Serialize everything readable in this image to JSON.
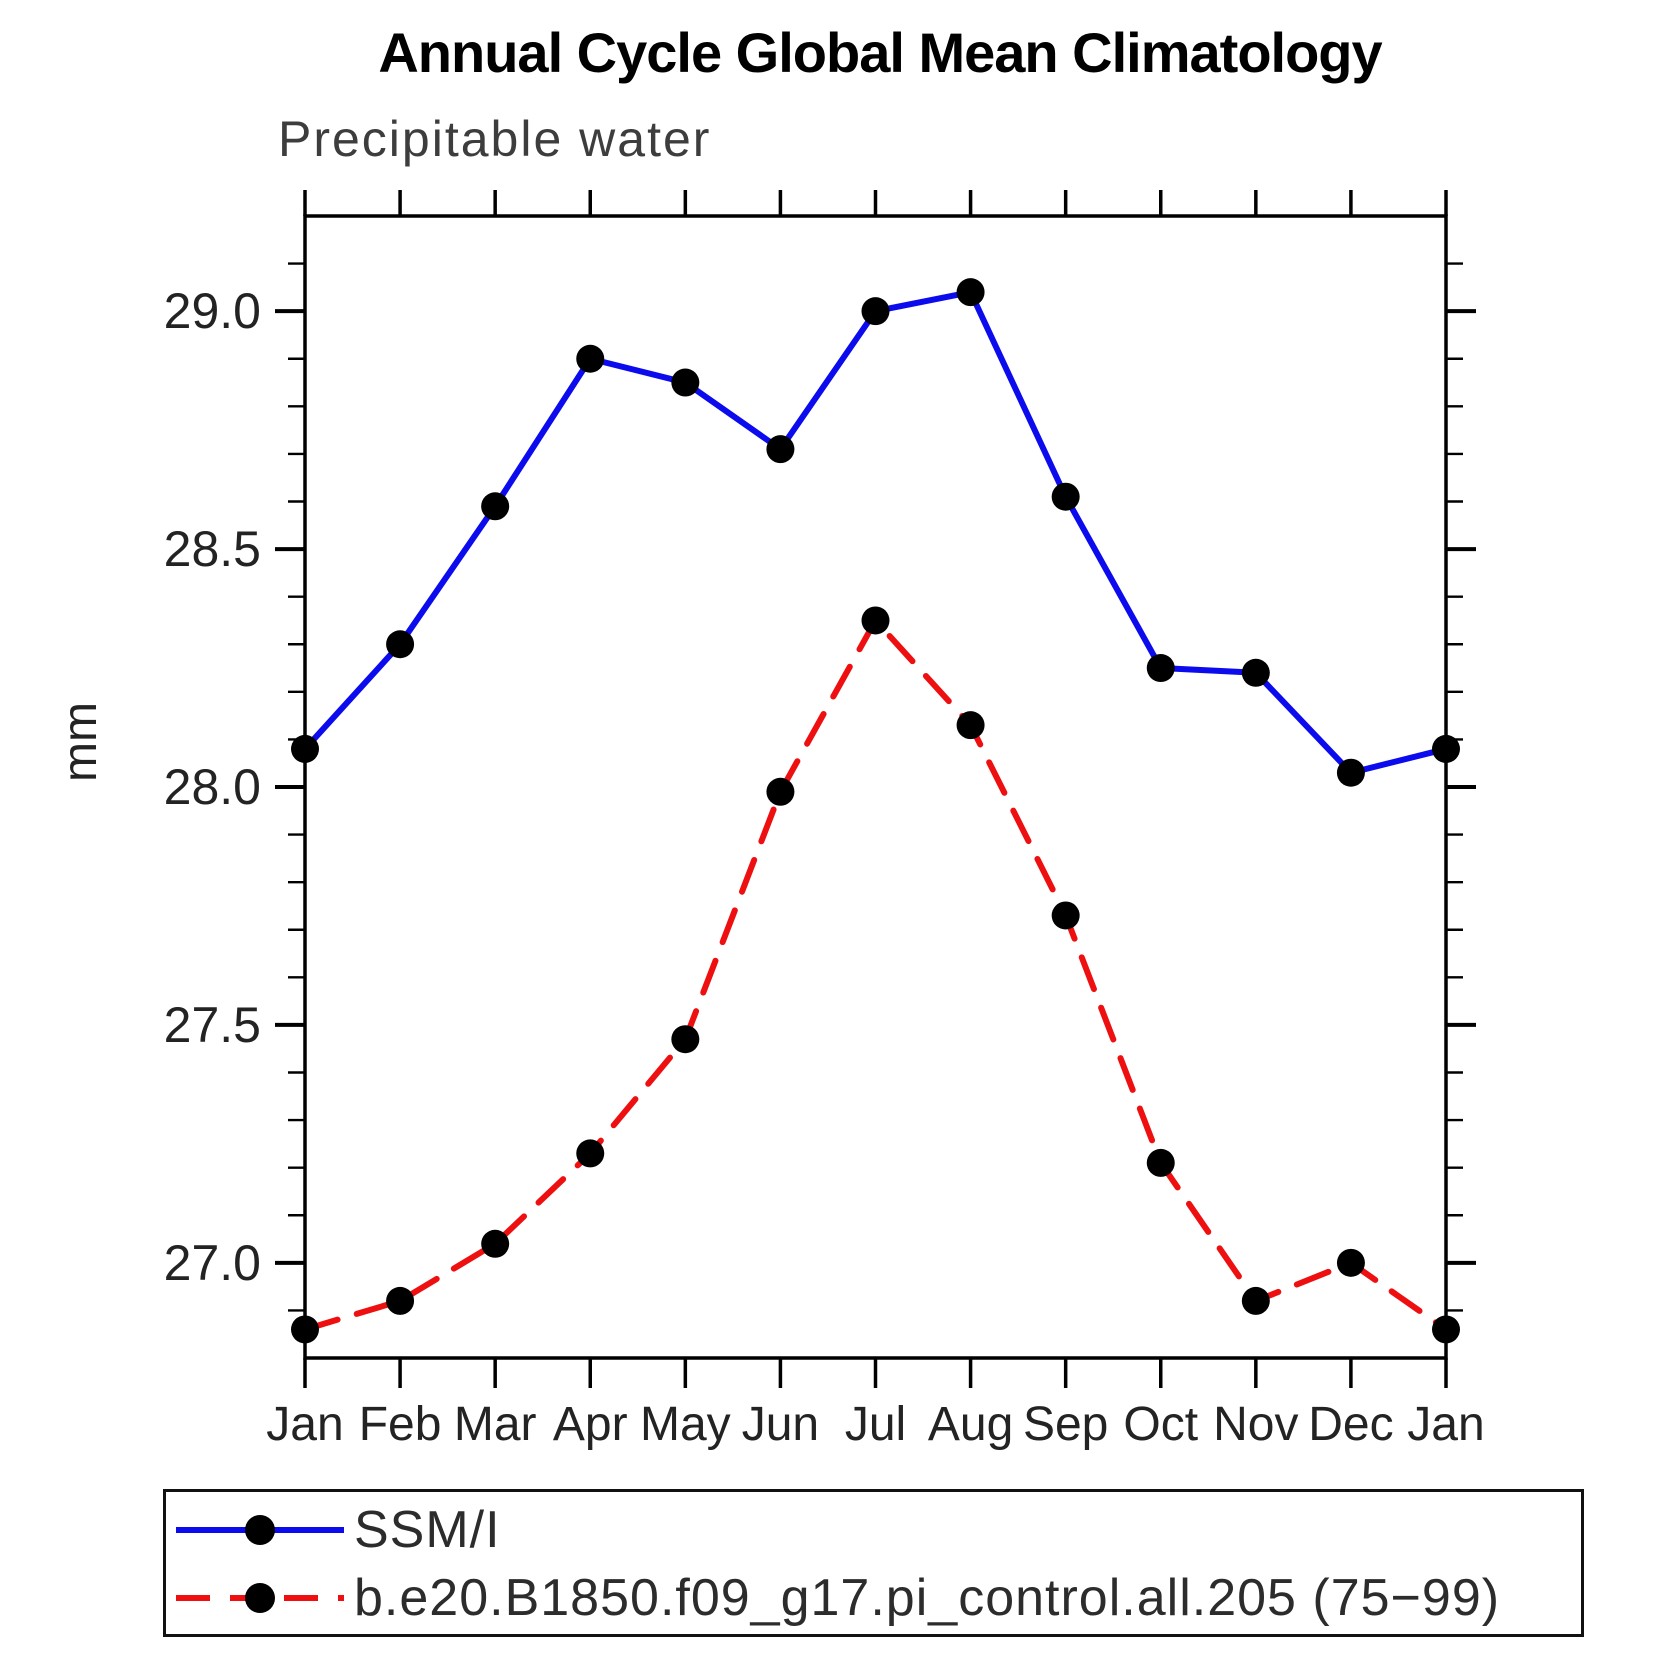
{
  "title": "Annual Cycle Global Mean Climatology",
  "subtitle": "Precipitable water",
  "ylabel": "mm",
  "colors": {
    "obs_line": "#0b0bee",
    "model_line": "#ee1010",
    "marker": "#000000",
    "axis": "#000000",
    "tick_text": "#232323"
  },
  "chart_data": {
    "type": "line",
    "title": "Annual Cycle Global Mean Climatology",
    "subtitle": "Precipitable water",
    "xlabel": "",
    "ylabel": "mm",
    "x": [
      "Jan",
      "Feb",
      "Mar",
      "Apr",
      "May",
      "Jun",
      "Jul",
      "Aug",
      "Sep",
      "Oct",
      "Nov",
      "Dec",
      "Jan"
    ],
    "series": [
      {
        "name": "SSM/I",
        "style": "solid",
        "color": "#0b0bee",
        "marker": "filled-circle",
        "marker_color": "#000000",
        "values": [
          28.08,
          28.3,
          28.59,
          28.9,
          28.85,
          28.71,
          29.0,
          29.04,
          28.61,
          28.25,
          28.24,
          28.03,
          28.08
        ]
      },
      {
        "name": "b.e20.B1850.f09_g17.pi_control.all.205 (75−99)",
        "style": "dashed",
        "color": "#ee1010",
        "marker": "filled-circle",
        "marker_color": "#000000",
        "values": [
          26.86,
          26.92,
          27.04,
          27.23,
          27.47,
          27.99,
          28.35,
          28.13,
          27.73,
          27.21,
          26.92,
          27.0,
          26.86
        ]
      }
    ],
    "ylim": [
      26.8,
      29.2
    ],
    "yticks": {
      "major": [
        27.0,
        27.5,
        28.0,
        28.5,
        29.0
      ],
      "labels": [
        "27.0",
        "27.5",
        "28.0",
        "28.5",
        "29.0"
      ],
      "minor_step": 0.1
    },
    "grid": false,
    "legend_position": "bottom-box"
  },
  "legend": {
    "note": "labels mirror chart_data.series names"
  }
}
